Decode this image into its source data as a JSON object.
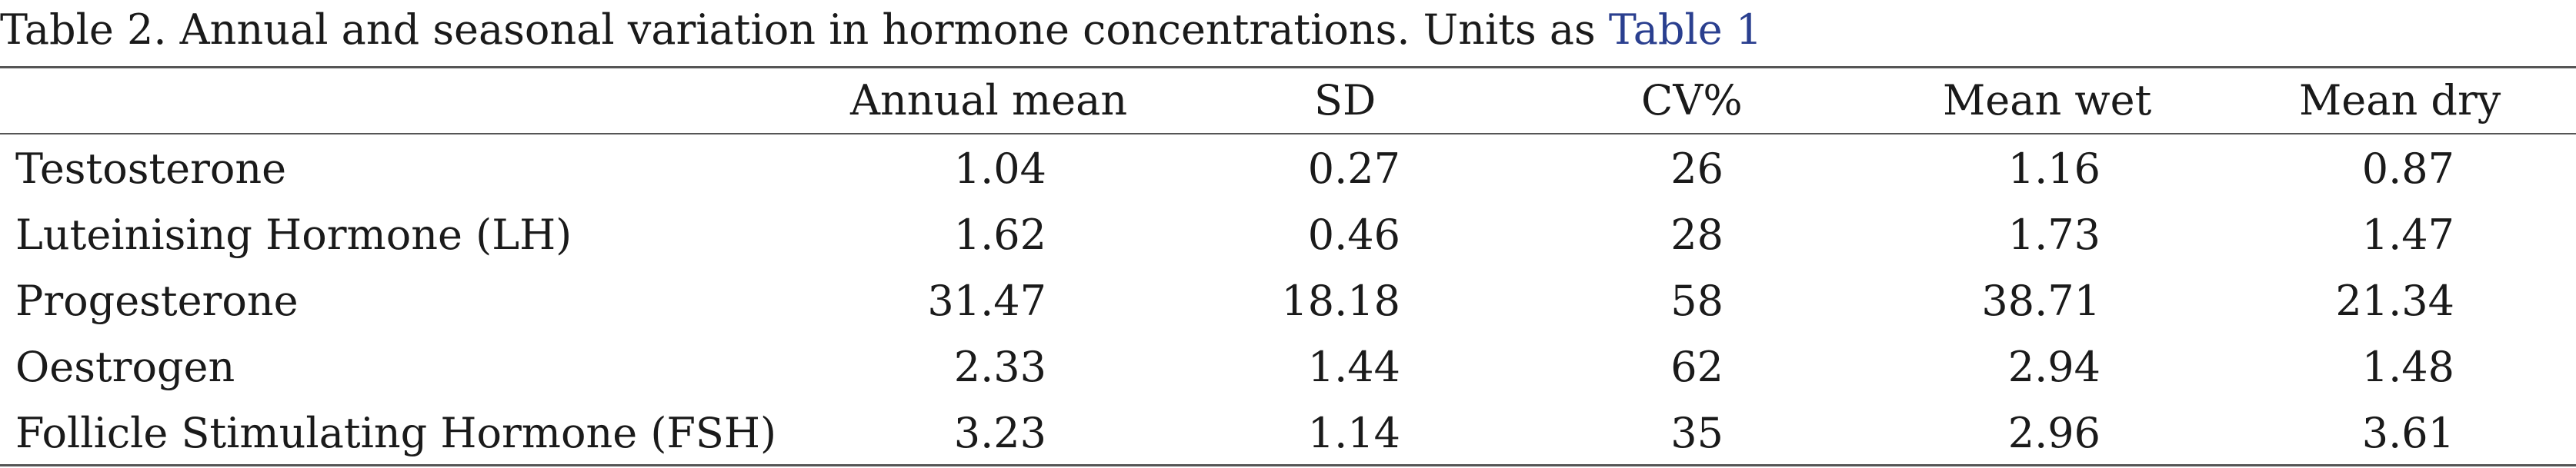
{
  "caption": {
    "text": "Table 2. Annual and seasonal variation in hormone concentrations. Units as ",
    "link": "Table 1"
  },
  "table": {
    "columns": [
      "",
      "Annual mean",
      "SD",
      "CV%",
      "Mean wet",
      "Mean dry"
    ],
    "rows": [
      {
        "hormone": "Testosterone",
        "annual_mean": "1.04",
        "sd": "0.27",
        "cv": "26",
        "mean_wet": "1.16",
        "mean_dry": "0.87"
      },
      {
        "hormone": "Luteinising Hormone (LH)",
        "annual_mean": "1.62",
        "sd": "0.46",
        "cv": "28",
        "mean_wet": "1.73",
        "mean_dry": "1.47"
      },
      {
        "hormone": "Progesterone",
        "annual_mean": "31.47",
        "sd": "18.18",
        "cv": "58",
        "mean_wet": "38.71",
        "mean_dry": "21.34"
      },
      {
        "hormone": "Oestrogen",
        "annual_mean": "2.33",
        "sd": "1.44",
        "cv": "62",
        "mean_wet": "2.94",
        "mean_dry": "1.48"
      },
      {
        "hormone": "Follicle Stimulating Hormone (FSH)",
        "annual_mean": "3.23",
        "sd": "1.14",
        "cv": "35",
        "mean_wet": "2.96",
        "mean_dry": "3.61"
      }
    ]
  }
}
